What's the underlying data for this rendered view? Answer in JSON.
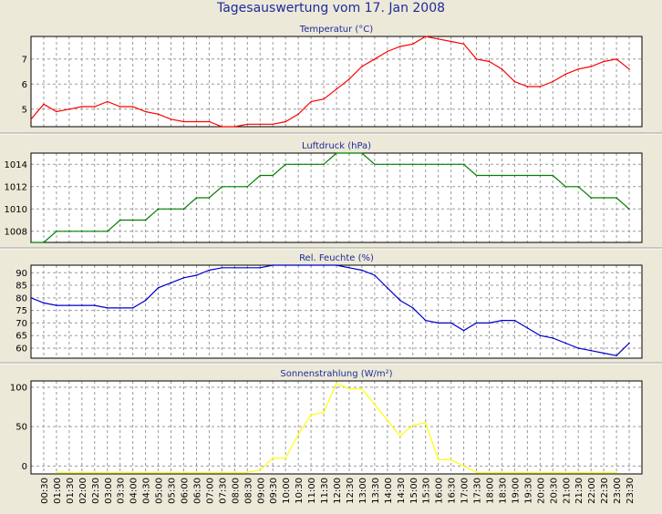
{
  "page": {
    "title": "Tagesauswertung vom 17. Jan 2008"
  },
  "colors": {
    "background": "#ece9d8",
    "plot_background": "#ffffff",
    "grid": "#9a9a9a",
    "axis_text": "#000000",
    "title_text": "#1f2a9c"
  },
  "x_ticks": [
    "00:30",
    "01:00",
    "01:30",
    "02:00",
    "02:30",
    "03:00",
    "03:30",
    "04:00",
    "04:30",
    "05:00",
    "05:30",
    "06:00",
    "06:30",
    "07:00",
    "07:30",
    "08:00",
    "08:30",
    "09:00",
    "09:30",
    "10:00",
    "10:30",
    "11:00",
    "11:30",
    "12:00",
    "12:30",
    "13:00",
    "13:30",
    "14:00",
    "14:30",
    "15:00",
    "15:30",
    "16:00",
    "16:30",
    "17:00",
    "17:30",
    "18:00",
    "18:30",
    "19:00",
    "19:30",
    "20:00",
    "20:30",
    "21:00",
    "21:30",
    "22:00",
    "22:30",
    "23:00",
    "23:30"
  ],
  "chart_data": [
    {
      "type": "line",
      "title": "Temperatur (°C)",
      "color": "#ff0000",
      "ylim": [
        4.3,
        7.9
      ],
      "yticks": [
        5,
        6,
        7
      ],
      "grid": true,
      "x": [
        "00:00",
        "00:30",
        "01:00",
        "01:30",
        "02:00",
        "02:30",
        "03:00",
        "03:30",
        "04:00",
        "04:30",
        "05:00",
        "05:30",
        "06:00",
        "06:30",
        "07:00",
        "07:30",
        "08:00",
        "08:30",
        "09:00",
        "09:30",
        "10:00",
        "10:30",
        "11:00",
        "11:30",
        "12:00",
        "12:30",
        "13:00",
        "13:30",
        "14:00",
        "14:30",
        "15:00",
        "15:30",
        "16:00",
        "16:30",
        "17:00",
        "17:30",
        "18:00",
        "18:30",
        "19:00",
        "19:30",
        "20:00",
        "20:30",
        "21:00",
        "21:30",
        "22:00",
        "22:30",
        "23:00",
        "23:30"
      ],
      "values": [
        4.6,
        5.2,
        4.9,
        5.0,
        5.1,
        5.1,
        5.3,
        5.1,
        5.1,
        4.9,
        4.8,
        4.6,
        4.5,
        4.5,
        4.5,
        4.3,
        4.3,
        4.4,
        4.4,
        4.4,
        4.5,
        4.8,
        5.3,
        5.4,
        5.8,
        6.2,
        6.7,
        7.0,
        7.3,
        7.5,
        7.6,
        7.9,
        7.8,
        7.7,
        7.6,
        7.0,
        6.9,
        6.6,
        6.1,
        5.9,
        5.9,
        6.1,
        6.4,
        6.6,
        6.7,
        6.9,
        7.0,
        6.6
      ]
    },
    {
      "type": "line",
      "title": "Luftdruck (hPa)",
      "color": "#008000",
      "ylim": [
        1007,
        1015
      ],
      "yticks": [
        1008,
        1010,
        1012,
        1014
      ],
      "grid": true,
      "x": [
        "00:00",
        "00:30",
        "01:00",
        "01:30",
        "02:00",
        "02:30",
        "03:00",
        "03:30",
        "04:00",
        "04:30",
        "05:00",
        "05:30",
        "06:00",
        "06:30",
        "07:00",
        "07:30",
        "08:00",
        "08:30",
        "09:00",
        "09:30",
        "10:00",
        "10:30",
        "11:00",
        "11:30",
        "12:00",
        "12:30",
        "13:00",
        "13:30",
        "14:00",
        "14:30",
        "15:00",
        "15:30",
        "16:00",
        "16:30",
        "17:00",
        "17:30",
        "18:00",
        "18:30",
        "19:00",
        "19:30",
        "20:00",
        "20:30",
        "21:00",
        "21:30",
        "22:00",
        "22:30",
        "23:00",
        "23:30"
      ],
      "values": [
        1007,
        1007,
        1008,
        1008,
        1008,
        1008,
        1008,
        1009,
        1009,
        1009,
        1010,
        1010,
        1010,
        1011,
        1011,
        1012,
        1012,
        1012,
        1013,
        1013,
        1014,
        1014,
        1014,
        1014,
        1015,
        1015,
        1015,
        1014,
        1014,
        1014,
        1014,
        1014,
        1014,
        1014,
        1014,
        1013,
        1013,
        1013,
        1013,
        1013,
        1013,
        1013,
        1012,
        1012,
        1011,
        1011,
        1011,
        1010
      ]
    },
    {
      "type": "line",
      "title": "Rel. Feuchte (%)",
      "color": "#0000cc",
      "ylim": [
        56,
        93
      ],
      "yticks": [
        60,
        65,
        70,
        75,
        80,
        85,
        90
      ],
      "grid": true,
      "x": [
        "00:00",
        "00:30",
        "01:00",
        "01:30",
        "02:00",
        "02:30",
        "03:00",
        "03:30",
        "04:00",
        "04:30",
        "05:00",
        "05:30",
        "06:00",
        "06:30",
        "07:00",
        "07:30",
        "08:00",
        "08:30",
        "09:00",
        "09:30",
        "10:00",
        "10:30",
        "11:00",
        "11:30",
        "12:00",
        "12:30",
        "13:00",
        "13:30",
        "14:00",
        "14:30",
        "15:00",
        "15:30",
        "16:00",
        "16:30",
        "17:00",
        "17:30",
        "18:00",
        "18:30",
        "19:00",
        "19:30",
        "20:00",
        "20:30",
        "21:00",
        "21:30",
        "22:00",
        "22:30",
        "23:00",
        "23:30"
      ],
      "values": [
        80,
        78,
        77,
        77,
        77,
        77,
        76,
        76,
        76,
        79,
        84,
        86,
        88,
        89,
        91,
        92,
        92,
        92,
        92,
        93,
        93,
        93,
        93,
        93,
        93,
        92,
        91,
        89,
        84,
        79,
        76,
        71,
        70,
        70,
        67,
        70,
        70,
        71,
        71,
        68,
        65,
        64,
        62,
        60,
        59,
        58,
        57,
        62
      ]
    },
    {
      "type": "line",
      "title": "Sonnenstrahlung (W/m²)",
      "color": "#ffff00",
      "ylim": [
        -10,
        108
      ],
      "yticks": [
        0,
        50,
        100
      ],
      "grid": true,
      "x": [
        "01:00",
        "01:30",
        "02:00",
        "02:30",
        "03:00",
        "03:30",
        "04:00",
        "04:30",
        "05:00",
        "05:30",
        "06:00",
        "06:30",
        "07:00",
        "07:30",
        "08:00",
        "08:30",
        "09:00",
        "09:30",
        "10:00",
        "10:30",
        "11:00",
        "11:30",
        "12:00",
        "12:30",
        "13:00",
        "13:30",
        "14:00",
        "14:30",
        "15:00",
        "15:30",
        "16:00",
        "16:30",
        "17:00",
        "17:30",
        "21:30",
        "22:00",
        "22:30",
        "23:00"
      ],
      "values": [
        -8,
        -8,
        -8,
        -8,
        -8,
        -8,
        -8,
        -8,
        -8,
        -8,
        -8,
        -8,
        -8,
        -8,
        -8,
        -8,
        -5,
        10,
        10,
        40,
        65,
        68,
        105,
        98,
        98,
        78,
        58,
        38,
        52,
        55,
        8,
        8,
        0,
        -8,
        -8,
        -8,
        -8,
        -8
      ]
    }
  ]
}
